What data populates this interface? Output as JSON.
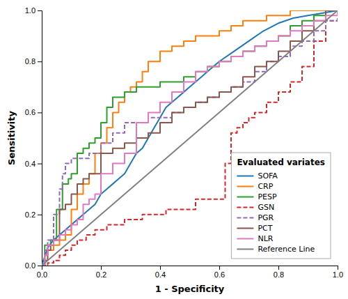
{
  "chart_data": {
    "type": "line",
    "xlabel": "1 - Specificity",
    "ylabel": "Sensitivity",
    "legend_title": "Evaluated variates",
    "legend": "lower right",
    "grid": false,
    "xlim": [
      0.0,
      1.0
    ],
    "ylim": [
      0.0,
      1.0
    ],
    "xticks": [
      {
        "value": 0.0,
        "label": "0.0"
      },
      0.2,
      0.4,
      0.6,
      0.8,
      {
        "value": 1.0,
        "label": "1.0"
      }
    ],
    "yticks": [
      {
        "value": 0.0,
        "label": "0.0"
      },
      0.2,
      0.4,
      0.6,
      0.8,
      {
        "value": 1.0,
        "label": "1.0"
      }
    ],
    "series": [
      {
        "name": "SOFA",
        "type": "line",
        "line_style": "solid",
        "x": [
          0.0,
          0.02,
          0.04,
          0.06,
          0.08,
          0.1,
          0.12,
          0.14,
          0.16,
          0.18,
          0.2,
          0.22,
          0.24,
          0.26,
          0.28,
          0.3,
          0.32,
          0.34,
          0.36,
          0.38,
          0.4,
          0.42,
          0.44,
          0.46,
          0.48,
          0.5,
          0.52,
          0.54,
          0.56,
          0.58,
          0.6,
          0.65,
          0.7,
          0.75,
          0.8,
          0.85,
          0.9,
          0.95,
          1.0
        ],
        "values": [
          0.0,
          0.07,
          0.1,
          0.12,
          0.14,
          0.16,
          0.18,
          0.2,
          0.22,
          0.24,
          0.28,
          0.3,
          0.32,
          0.34,
          0.36,
          0.4,
          0.44,
          0.46,
          0.5,
          0.54,
          0.58,
          0.62,
          0.64,
          0.66,
          0.68,
          0.7,
          0.72,
          0.74,
          0.76,
          0.78,
          0.8,
          0.84,
          0.88,
          0.92,
          0.95,
          0.97,
          0.98,
          0.99,
          1.0
        ]
      },
      {
        "name": "CRP",
        "type": "step",
        "line_style": "solid",
        "x": [
          0.0,
          0.01,
          0.02,
          0.04,
          0.06,
          0.08,
          0.1,
          0.12,
          0.14,
          0.16,
          0.18,
          0.2,
          0.22,
          0.24,
          0.26,
          0.28,
          0.3,
          0.32,
          0.34,
          0.36,
          0.4,
          0.44,
          0.48,
          0.52,
          0.56,
          0.6,
          0.64,
          0.68,
          0.72,
          0.76,
          0.8,
          0.84,
          0.88,
          0.92,
          0.95,
          1.0
        ],
        "values": [
          0.0,
          0.04,
          0.06,
          0.08,
          0.1,
          0.12,
          0.22,
          0.28,
          0.32,
          0.36,
          0.44,
          0.48,
          0.54,
          0.6,
          0.64,
          0.68,
          0.7,
          0.72,
          0.76,
          0.8,
          0.84,
          0.86,
          0.88,
          0.9,
          0.9,
          0.92,
          0.94,
          0.96,
          0.96,
          0.98,
          0.98,
          1.0,
          1.0,
          1.0,
          1.0,
          1.0
        ]
      },
      {
        "name": "PESP",
        "type": "step",
        "line_style": "solid",
        "x": [
          0.0,
          0.01,
          0.03,
          0.05,
          0.07,
          0.09,
          0.1,
          0.12,
          0.14,
          0.16,
          0.18,
          0.2,
          0.22,
          0.24,
          0.28,
          0.32,
          0.36,
          0.4,
          0.44,
          0.48,
          0.52,
          0.56,
          0.6,
          0.64,
          0.68,
          0.72,
          0.76,
          0.8,
          0.84,
          0.88,
          0.92,
          0.96,
          1.0
        ],
        "values": [
          0.0,
          0.08,
          0.1,
          0.22,
          0.32,
          0.34,
          0.36,
          0.44,
          0.46,
          0.48,
          0.5,
          0.56,
          0.62,
          0.66,
          0.68,
          0.7,
          0.7,
          0.72,
          0.72,
          0.74,
          0.76,
          0.78,
          0.8,
          0.82,
          0.84,
          0.86,
          0.88,
          0.9,
          0.94,
          0.96,
          0.98,
          1.0,
          1.0
        ]
      },
      {
        "name": "GSN",
        "type": "step",
        "line_style": "dashed",
        "x": [
          0.0,
          0.02,
          0.04,
          0.06,
          0.08,
          0.1,
          0.12,
          0.15,
          0.18,
          0.22,
          0.28,
          0.34,
          0.42,
          0.52,
          0.6,
          0.62,
          0.64,
          0.66,
          0.68,
          0.7,
          0.72,
          0.76,
          0.8,
          0.84,
          0.88,
          0.92,
          0.96,
          1.0
        ],
        "values": [
          0.0,
          0.01,
          0.02,
          0.04,
          0.06,
          0.08,
          0.1,
          0.12,
          0.14,
          0.16,
          0.18,
          0.2,
          0.22,
          0.26,
          0.26,
          0.4,
          0.52,
          0.54,
          0.56,
          0.58,
          0.6,
          0.64,
          0.68,
          0.72,
          0.78,
          0.88,
          0.96,
          1.0
        ]
      },
      {
        "name": "PGR",
        "type": "step",
        "line_style": "dashed",
        "x": [
          0.0,
          0.01,
          0.02,
          0.04,
          0.06,
          0.07,
          0.08,
          0.09,
          0.1,
          0.12,
          0.14,
          0.16,
          0.2,
          0.24,
          0.28,
          0.32,
          0.36,
          0.4,
          0.44,
          0.48,
          0.52,
          0.56,
          0.6,
          0.64,
          0.68,
          0.72,
          0.76,
          0.8,
          0.84,
          0.88,
          0.92,
          0.96,
          1.0
        ],
        "values": [
          0.0,
          0.06,
          0.1,
          0.2,
          0.3,
          0.36,
          0.4,
          0.4,
          0.42,
          0.42,
          0.42,
          0.44,
          0.48,
          0.52,
          0.56,
          0.56,
          0.58,
          0.58,
          0.6,
          0.62,
          0.64,
          0.66,
          0.68,
          0.7,
          0.72,
          0.76,
          0.8,
          0.82,
          0.86,
          0.88,
          0.92,
          0.96,
          1.0
        ]
      },
      {
        "name": "PCT",
        "type": "step",
        "line_style": "solid",
        "x": [
          0.0,
          0.01,
          0.02,
          0.03,
          0.04,
          0.06,
          0.08,
          0.1,
          0.12,
          0.14,
          0.16,
          0.2,
          0.24,
          0.28,
          0.32,
          0.36,
          0.4,
          0.44,
          0.48,
          0.52,
          0.56,
          0.6,
          0.64,
          0.68,
          0.72,
          0.76,
          0.8,
          0.84,
          0.88,
          0.92,
          0.96,
          1.0
        ],
        "values": [
          0.0,
          0.02,
          0.06,
          0.08,
          0.1,
          0.22,
          0.24,
          0.28,
          0.32,
          0.34,
          0.36,
          0.44,
          0.46,
          0.48,
          0.5,
          0.52,
          0.56,
          0.6,
          0.62,
          0.64,
          0.66,
          0.68,
          0.7,
          0.74,
          0.78,
          0.8,
          0.84,
          0.88,
          0.92,
          0.96,
          1.0,
          1.0
        ]
      },
      {
        "name": "NLR",
        "type": "step",
        "line_style": "solid",
        "x": [
          0.0,
          0.01,
          0.02,
          0.04,
          0.06,
          0.08,
          0.1,
          0.12,
          0.14,
          0.16,
          0.18,
          0.2,
          0.24,
          0.28,
          0.32,
          0.36,
          0.4,
          0.44,
          0.48,
          0.52,
          0.56,
          0.6,
          0.64,
          0.68,
          0.72,
          0.76,
          0.8,
          0.84,
          0.88,
          0.92,
          0.96,
          1.0
        ],
        "values": [
          0.0,
          0.04,
          0.08,
          0.1,
          0.12,
          0.14,
          0.16,
          0.18,
          0.24,
          0.26,
          0.28,
          0.36,
          0.4,
          0.44,
          0.56,
          0.6,
          0.64,
          0.68,
          0.72,
          0.76,
          0.78,
          0.8,
          0.82,
          0.84,
          0.86,
          0.88,
          0.9,
          0.92,
          0.94,
          0.96,
          0.98,
          1.0
        ]
      },
      {
        "name": "Reference Line",
        "type": "line",
        "line_style": "solid",
        "x": [
          0.0,
          1.0
        ],
        "values": [
          0.0,
          1.0
        ]
      }
    ]
  }
}
